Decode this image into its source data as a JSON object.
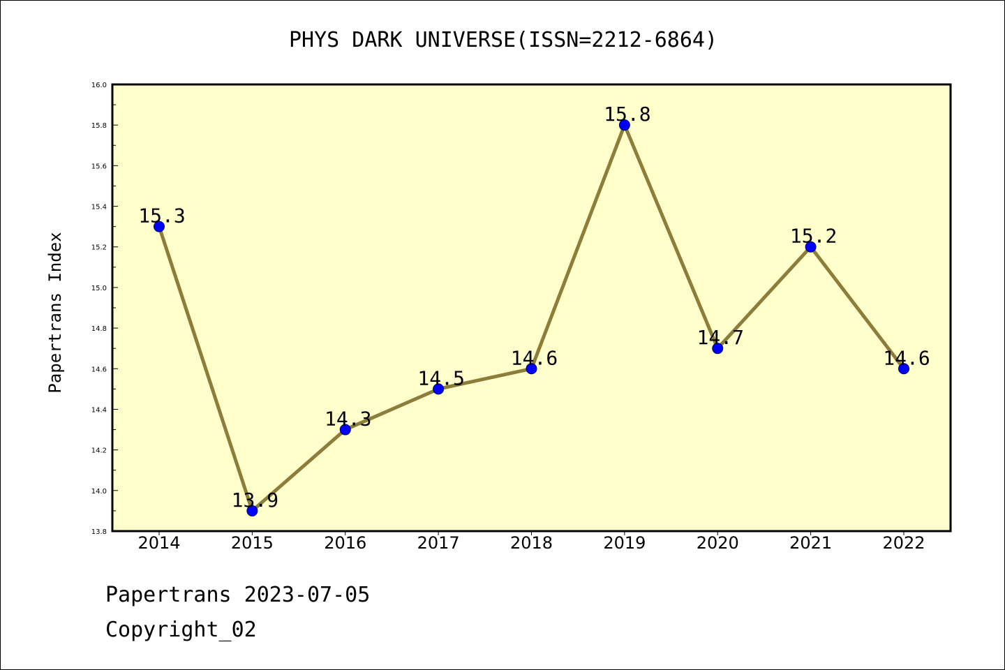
{
  "colors": {
    "plot_background": "#ffffcc",
    "line": "#8c7e3a",
    "marker": "#0000ff",
    "marker_edge": "#000066",
    "axis": "#000000"
  },
  "footer": {
    "line1": "Papertrans 2023-07-05",
    "line2": "Copyright_02"
  },
  "chart_data": {
    "type": "line",
    "title": "PHYS DARK UNIVERSE(ISSN=2212-6864)",
    "xlabel": "",
    "ylabel": "Papertrans Index",
    "categories": [
      "2014",
      "2015",
      "2016",
      "2017",
      "2018",
      "2019",
      "2020",
      "2021",
      "2022"
    ],
    "values": [
      15.3,
      13.9,
      14.3,
      14.5,
      14.6,
      15.8,
      14.7,
      15.2,
      14.6
    ],
    "data_labels": [
      "15.3",
      "13.9",
      "14.3",
      "14.5",
      "14.6",
      "15.8",
      "14.7",
      "15.2",
      "14.6"
    ],
    "ylim": [
      13.8,
      16.0
    ],
    "yticks": [
      "13.8",
      "14.0",
      "14.2",
      "14.4",
      "14.6",
      "14.8",
      "15.0",
      "15.2",
      "15.4",
      "15.6",
      "15.8",
      "16.0"
    ],
    "grid": false,
    "legend": "none"
  }
}
